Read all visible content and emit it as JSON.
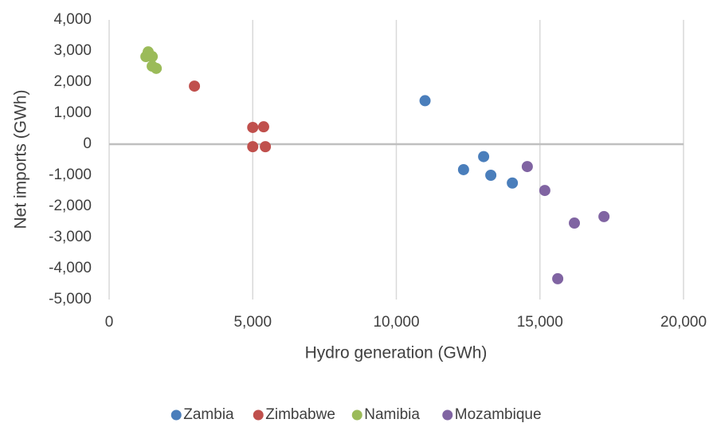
{
  "chart_data": {
    "type": "scatter",
    "xlabel": "Hydro generation (GWh)",
    "ylabel": "Net imports (GWh)",
    "xlim": [
      0,
      20000
    ],
    "xticks": [
      0,
      {
        "value": 5000,
        "label": "5,000"
      },
      {
        "value": 10000,
        "label": "10,000"
      },
      {
        "value": 15000,
        "label": "15,000"
      },
      {
        "value": 20000,
        "label": "20,000"
      }
    ],
    "ylim": [
      -5000,
      4000
    ],
    "yticks": [
      {
        "value": -5000,
        "label": "-5,000"
      },
      {
        "value": -4000,
        "label": "-4,000"
      },
      {
        "value": -3000,
        "label": "-3,000"
      },
      {
        "value": -2000,
        "label": "-2,000"
      },
      {
        "value": -1000,
        "label": "-1,000"
      },
      0,
      {
        "value": 1000,
        "label": "1,000"
      },
      {
        "value": 2000,
        "label": "2,000"
      },
      {
        "value": 3000,
        "label": "3,000"
      },
      {
        "value": 4000,
        "label": "4,000"
      }
    ],
    "grid": "x",
    "legend": "bottom",
    "series": [
      {
        "name": "Zambia",
        "color": "#4a7ebb",
        "x": [
          11000,
          12340,
          13040,
          13290,
          14040
        ],
        "values": [
          1400,
          -820,
          -400,
          -1000,
          -1250
        ]
      },
      {
        "name": "Zimbabwe",
        "color": "#c0504d",
        "x": [
          2970,
          5000,
          5380,
          5000,
          5440
        ],
        "values": [
          1870,
          540,
          560,
          -80,
          -80
        ]
      },
      {
        "name": "Namibia",
        "color": "#9bbb59",
        "x": [
          1360,
          1280,
          1500,
          1500,
          1640
        ],
        "values": [
          2970,
          2820,
          2820,
          2510,
          2440
        ]
      },
      {
        "name": "Mozambique",
        "color": "#8064a2",
        "x": [
          14560,
          15170,
          16200,
          17230,
          15620
        ],
        "values": [
          -720,
          -1490,
          -2540,
          -2330,
          -4330
        ]
      }
    ]
  }
}
